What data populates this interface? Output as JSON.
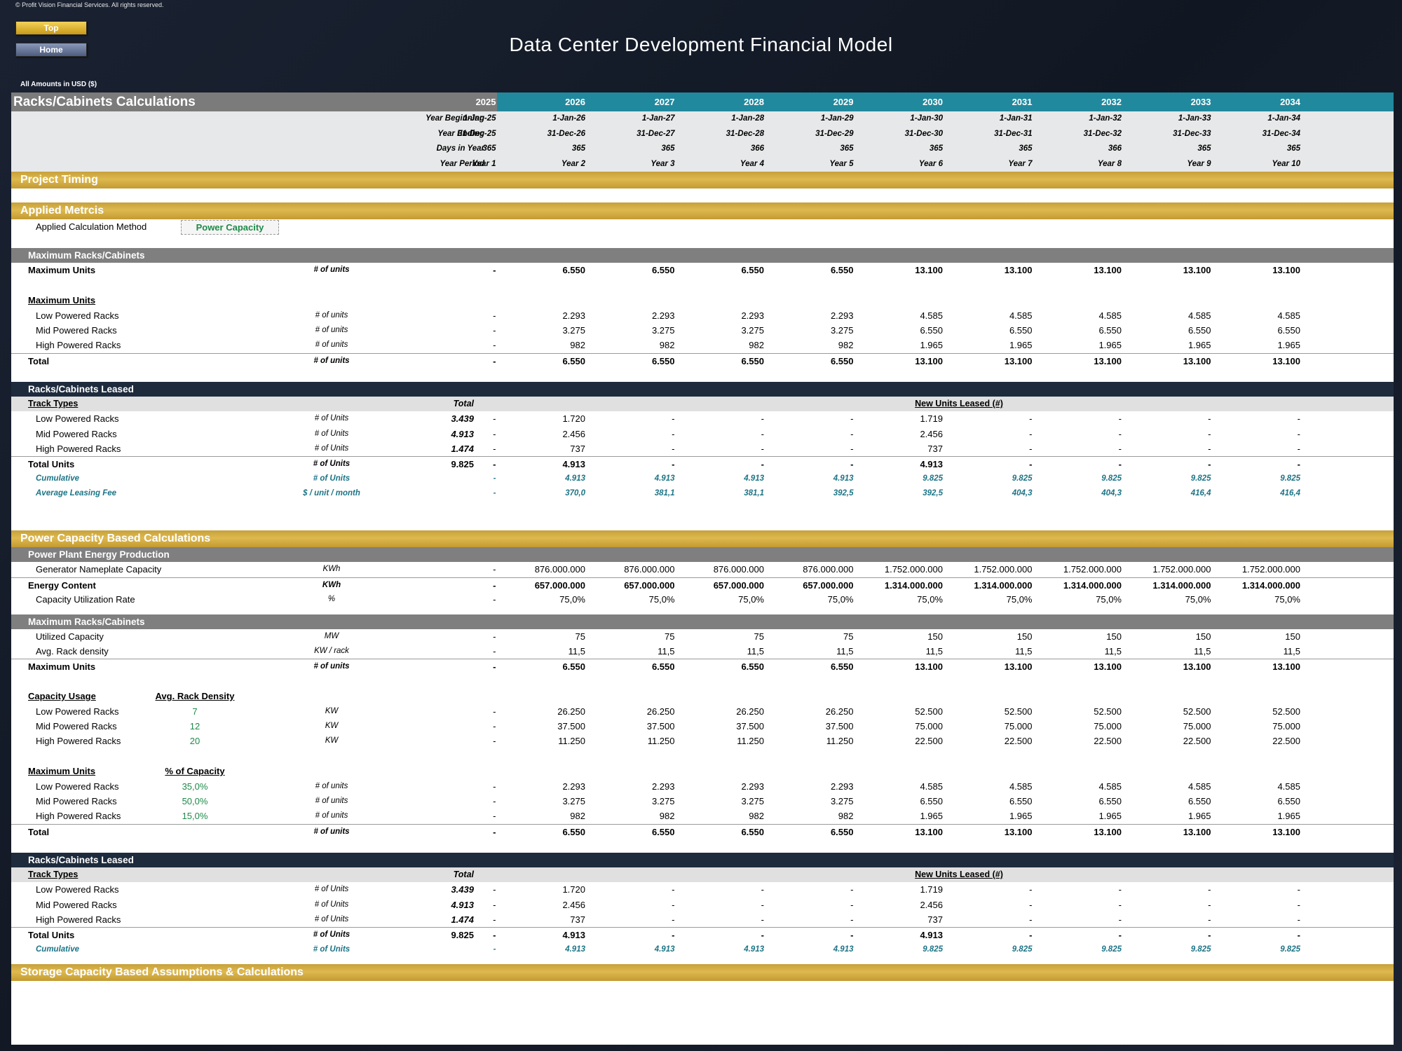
{
  "copyright": "© Profit Vision Financial Services. All rights reserved.",
  "nav": {
    "top": "Top",
    "home": "Home"
  },
  "title": "Data Center Development Financial Model",
  "amounts_note": "All Amounts in  USD ($)",
  "sheet": {
    "title": "Racks/Cabinets Calculations",
    "years": [
      "2025",
      "2026",
      "2027",
      "2028",
      "2029",
      "2030",
      "2031",
      "2032",
      "2033",
      "2034"
    ],
    "date_rows": [
      {
        "label": "Year Beginning",
        "values": [
          "1-Jan-25",
          "1-Jan-26",
          "1-Jan-27",
          "1-Jan-28",
          "1-Jan-29",
          "1-Jan-30",
          "1-Jan-31",
          "1-Jan-32",
          "1-Jan-33",
          "1-Jan-34"
        ]
      },
      {
        "label": "Year Ending",
        "values": [
          "31-Dec-25",
          "31-Dec-26",
          "31-Dec-27",
          "31-Dec-28",
          "31-Dec-29",
          "31-Dec-30",
          "31-Dec-31",
          "31-Dec-32",
          "31-Dec-33",
          "31-Dec-34"
        ]
      },
      {
        "label": "Days in Year",
        "values": [
          "365",
          "365",
          "365",
          "366",
          "365",
          "365",
          "365",
          "366",
          "365",
          "365"
        ]
      },
      {
        "label": "Year Period",
        "values": [
          "Year 1",
          "Year 2",
          "Year 3",
          "Year 4",
          "Year 5",
          "Year 6",
          "Year 7",
          "Year 8",
          "Year 9",
          "Year 10"
        ]
      }
    ],
    "sections": {
      "project_timing": "Project Timing",
      "applied_metrics": "Applied Metrcis",
      "power_capacity": "Power Capacity Based Calculations",
      "storage_capacity": "Storage Capacity Based Assumptions & Calculations"
    },
    "applied_method": {
      "label": "Applied Calculation Method",
      "value": "Power Capacity"
    },
    "block1": {
      "header": "Maximum Racks/Cabinets",
      "max_units": {
        "label": "Maximum Units",
        "unit": "# of units",
        "values": [
          "-",
          "6.550",
          "6.550",
          "6.550",
          "6.550",
          "13.100",
          "13.100",
          "13.100",
          "13.100",
          "13.100"
        ]
      },
      "sub_header": "Maximum Units",
      "rows": [
        {
          "label": "Low Powered Racks",
          "unit": "# of units",
          "values": [
            "-",
            "2.293",
            "2.293",
            "2.293",
            "2.293",
            "4.585",
            "4.585",
            "4.585",
            "4.585",
            "4.585"
          ]
        },
        {
          "label": "Mid Powered Racks",
          "unit": "# of units",
          "values": [
            "-",
            "3.275",
            "3.275",
            "3.275",
            "3.275",
            "6.550",
            "6.550",
            "6.550",
            "6.550",
            "6.550"
          ]
        },
        {
          "label": "High Powered Racks",
          "unit": "# of units",
          "values": [
            "-",
            "982",
            "982",
            "982",
            "982",
            "1.965",
            "1.965",
            "1.965",
            "1.965",
            "1.965"
          ]
        }
      ],
      "total": {
        "label": "Total",
        "unit": "# of units",
        "values": [
          "-",
          "6.550",
          "6.550",
          "6.550",
          "6.550",
          "13.100",
          "13.100",
          "13.100",
          "13.100",
          "13.100"
        ]
      }
    },
    "leased1": {
      "header": "Racks/Cabinets Leased",
      "col_track": "Track Types",
      "col_total": "Total",
      "col_new": "New Units Leased (#)",
      "rows": [
        {
          "label": "Low Powered Racks",
          "unit": "# of Units",
          "total": "3.439",
          "values": [
            "-",
            "1.720",
            "-",
            "-",
            "-",
            "1.719",
            "-",
            "-",
            "-",
            "-"
          ]
        },
        {
          "label": "Mid Powered Racks",
          "unit": "# of Units",
          "total": "4.913",
          "values": [
            "-",
            "2.456",
            "-",
            "-",
            "-",
            "2.456",
            "-",
            "-",
            "-",
            "-"
          ]
        },
        {
          "label": "High Powered Racks",
          "unit": "# of Units",
          "total": "1.474",
          "values": [
            "-",
            "737",
            "-",
            "-",
            "-",
            "737",
            "-",
            "-",
            "-",
            "-"
          ]
        }
      ],
      "total": {
        "label": "Total Units",
        "unit": "# of Units",
        "total": "9.825",
        "values": [
          "-",
          "4.913",
          "-",
          "-",
          "-",
          "4.913",
          "-",
          "-",
          "-",
          "-"
        ]
      },
      "cumulative": {
        "label": "Cumulative",
        "unit": "# of Units",
        "values": [
          "-",
          "4.913",
          "4.913",
          "4.913",
          "4.913",
          "9.825",
          "9.825",
          "9.825",
          "9.825",
          "9.825"
        ]
      },
      "avg_fee": {
        "label": "Average Leasing Fee",
        "unit": "$ / unit / month",
        "values": [
          "-",
          "370,0",
          "381,1",
          "381,1",
          "392,5",
          "392,5",
          "404,3",
          "404,3",
          "416,4",
          "416,4"
        ]
      }
    },
    "energy": {
      "header": "Power Plant Energy Production",
      "rows": [
        {
          "label": "Generator Nameplate Capacity",
          "unit": "KWh",
          "bold": false,
          "values": [
            "-",
            "876.000.000",
            "876.000.000",
            "876.000.000",
            "876.000.000",
            "1.752.000.000",
            "1.752.000.000",
            "1.752.000.000",
            "1.752.000.000",
            "1.752.000.000"
          ]
        },
        {
          "label": "Energy Content",
          "unit": "KWh",
          "bold": true,
          "values": [
            "-",
            "657.000.000",
            "657.000.000",
            "657.000.000",
            "657.000.000",
            "1.314.000.000",
            "1.314.000.000",
            "1.314.000.000",
            "1.314.000.000",
            "1.314.000.000"
          ]
        },
        {
          "label": "Capacity Utilization Rate",
          "unit": "%",
          "bold": false,
          "values": [
            "-",
            "75,0%",
            "75,0%",
            "75,0%",
            "75,0%",
            "75,0%",
            "75,0%",
            "75,0%",
            "75,0%",
            "75,0%"
          ]
        }
      ]
    },
    "block2": {
      "header": "Maximum Racks/Cabinets",
      "rows": [
        {
          "label": "Utilized Capacity",
          "unit": "MW",
          "values": [
            "-",
            "75",
            "75",
            "75",
            "75",
            "150",
            "150",
            "150",
            "150",
            "150"
          ]
        },
        {
          "label": "Avg. Rack density",
          "unit": "KW / rack",
          "values": [
            "-",
            "11,5",
            "11,5",
            "11,5",
            "11,5",
            "11,5",
            "11,5",
            "11,5",
            "11,5",
            "11,5"
          ]
        }
      ],
      "max_units": {
        "label": "Maximum Units",
        "unit": "# of units",
        "values": [
          "-",
          "6.550",
          "6.550",
          "6.550",
          "6.550",
          "13.100",
          "13.100",
          "13.100",
          "13.100",
          "13.100"
        ]
      }
    },
    "capacity_usage": {
      "header": "Capacity Usage",
      "density_header": "Avg. Rack Density",
      "rows": [
        {
          "label": "Low Powered Racks",
          "density": "7",
          "unit": "KW",
          "values": [
            "-",
            "26.250",
            "26.250",
            "26.250",
            "26.250",
            "52.500",
            "52.500",
            "52.500",
            "52.500",
            "52.500"
          ]
        },
        {
          "label": "Mid Powered Racks",
          "density": "12",
          "unit": "KW",
          "values": [
            "-",
            "37.500",
            "37.500",
            "37.500",
            "37.500",
            "75.000",
            "75.000",
            "75.000",
            "75.000",
            "75.000"
          ]
        },
        {
          "label": "High Powered Racks",
          "density": "20",
          "unit": "KW",
          "values": [
            "-",
            "11.250",
            "11.250",
            "11.250",
            "11.250",
            "22.500",
            "22.500",
            "22.500",
            "22.500",
            "22.500"
          ]
        }
      ]
    },
    "max_units2": {
      "header": "Maximum Units",
      "pct_header": "% of Capacity",
      "rows": [
        {
          "label": "Low Powered Racks",
          "pct": "35,0%",
          "unit": "# of units",
          "values": [
            "-",
            "2.293",
            "2.293",
            "2.293",
            "2.293",
            "4.585",
            "4.585",
            "4.585",
            "4.585",
            "4.585"
          ]
        },
        {
          "label": "Mid Powered Racks",
          "pct": "50,0%",
          "unit": "# of units",
          "values": [
            "-",
            "3.275",
            "3.275",
            "3.275",
            "3.275",
            "6.550",
            "6.550",
            "6.550",
            "6.550",
            "6.550"
          ]
        },
        {
          "label": "High Powered Racks",
          "pct": "15,0%",
          "unit": "# of units",
          "values": [
            "-",
            "982",
            "982",
            "982",
            "982",
            "1.965",
            "1.965",
            "1.965",
            "1.965",
            "1.965"
          ]
        }
      ],
      "total": {
        "label": "Total",
        "unit": "# of units",
        "values": [
          "-",
          "6.550",
          "6.550",
          "6.550",
          "6.550",
          "13.100",
          "13.100",
          "13.100",
          "13.100",
          "13.100"
        ]
      }
    },
    "leased2": {
      "header": "Racks/Cabinets Leased",
      "col_track": "Track Types",
      "col_total": "Total",
      "col_new": "New Units Leased (#)",
      "rows": [
        {
          "label": "Low Powered Racks",
          "unit": "# of Units",
          "total": "3.439",
          "values": [
            "-",
            "1.720",
            "-",
            "-",
            "-",
            "1.719",
            "-",
            "-",
            "-",
            "-"
          ]
        },
        {
          "label": "Mid Powered Racks",
          "unit": "# of Units",
          "total": "4.913",
          "values": [
            "-",
            "2.456",
            "-",
            "-",
            "-",
            "2.456",
            "-",
            "-",
            "-",
            "-"
          ]
        },
        {
          "label": "High Powered Racks",
          "unit": "# of Units",
          "total": "1.474",
          "values": [
            "-",
            "737",
            "-",
            "-",
            "-",
            "737",
            "-",
            "-",
            "-",
            "-"
          ]
        }
      ],
      "total": {
        "label": "Total Units",
        "unit": "# of Units",
        "total": "9.825",
        "values": [
          "-",
          "4.913",
          "-",
          "-",
          "-",
          "4.913",
          "-",
          "-",
          "-",
          "-"
        ]
      },
      "cumulative": {
        "label": "Cumulative",
        "unit": "# of Units",
        "values": [
          "-",
          "4.913",
          "4.913",
          "4.913",
          "4.913",
          "9.825",
          "9.825",
          "9.825",
          "9.825",
          "9.825"
        ]
      }
    }
  }
}
